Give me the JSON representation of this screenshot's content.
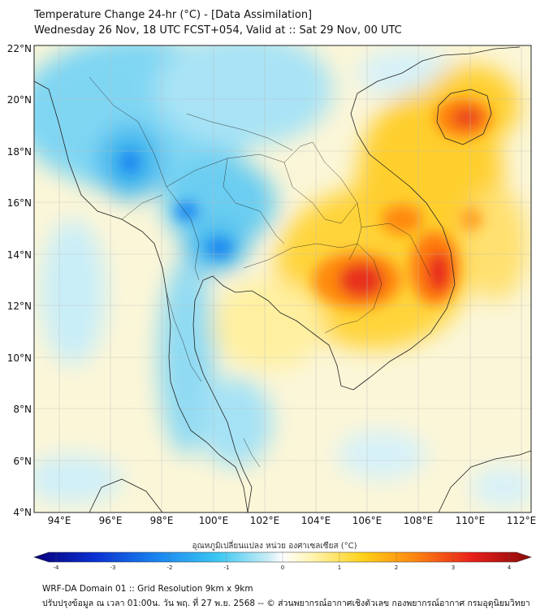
{
  "header": {
    "title": "Temperature Change 24-hr (°C) - [Data Assimilation]",
    "subtitle": "Wednesday 26 Nov, 18 UTC FCST+054, Valid at :: Sat 29 Nov, 00 UTC"
  },
  "map": {
    "lat_labels": [
      "22°N",
      "20°N",
      "18°N",
      "16°N",
      "14°N",
      "12°N",
      "10°N",
      "8°N",
      "6°N",
      "4°N"
    ],
    "lon_labels": [
      "94°E",
      "96°E",
      "98°E",
      "100°E",
      "102°E",
      "104°E",
      "106°E",
      "108°E",
      "110°E",
      "112°E"
    ]
  },
  "colorbar": {
    "title": "อุณหภูมิเปลี่ยนแปลง หน่วย องศาเซลเซียส (°C)",
    "ticks": [
      "-4",
      "-3",
      "-2",
      "-1",
      "0",
      "1",
      "2",
      "3",
      "4"
    ],
    "colors": [
      "#08007a",
      "#0a2fd0",
      "#1a86f0",
      "#3cc8f2",
      "#c8ecf6",
      "#ffffff",
      "#fff4b0",
      "#ffd21a",
      "#ff8a10",
      "#e8201a",
      "#8a0a0a"
    ]
  },
  "footer": {
    "line1": "WRF-DA Domain 01 :: Grid Resolution 9km x 9km",
    "line2": "ปรับปรุงข้อมูล ณ เวลา 01:00น. วัน พฤ. ที่ 27 พ.ย. 2568 -- © ส่วนพยากรณ์อากาศเชิงตัวเลข กองพยากรณ์อากาศ กรมอุตุนิยมวิทยา"
  }
}
